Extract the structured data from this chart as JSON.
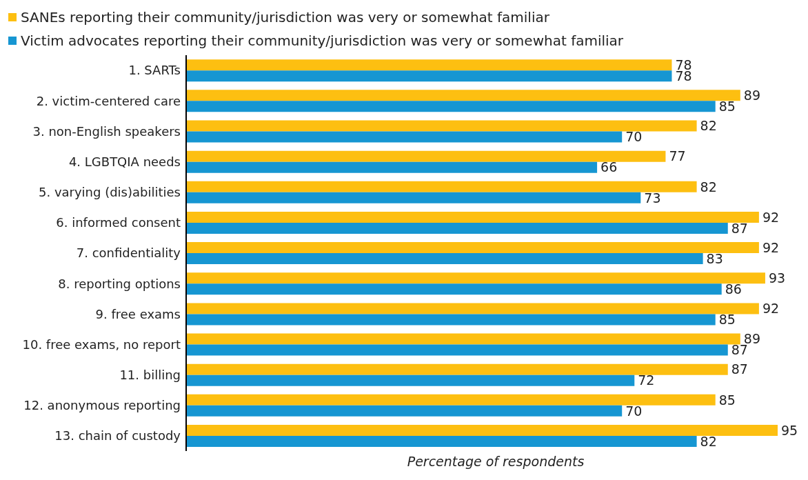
{
  "chart_data": {
    "type": "bar",
    "orientation": "horizontal",
    "xlabel": "Percentage of respondents",
    "categories": [
      "1. SARTs",
      "2. victim-centered care",
      "3. non-English speakers",
      "4. LGBTQIA needs",
      "5. varying (dis)abilities",
      "6. informed consent",
      "7. confidentiality",
      "8. reporting options",
      "9. free exams",
      "10. free exams, no report",
      "11. billing",
      "12. anonymous reporting",
      "13. chain of custody"
    ],
    "series": [
      {
        "name": "SANEs reporting their community/jurisdiction was very or somewhat familiar",
        "color": "#fdbf11",
        "values": [
          78,
          89,
          82,
          77,
          82,
          92,
          92,
          93,
          92,
          89,
          87,
          85,
          95
        ]
      },
      {
        "name": "Victim advocates reporting their community/jurisdiction was very or somewhat familiar",
        "color": "#1696d2",
        "values": [
          78,
          85,
          70,
          66,
          73,
          87,
          83,
          86,
          85,
          87,
          72,
          70,
          82
        ]
      }
    ],
    "data_labels": true,
    "legend": "top left",
    "tick_labels": "y"
  }
}
